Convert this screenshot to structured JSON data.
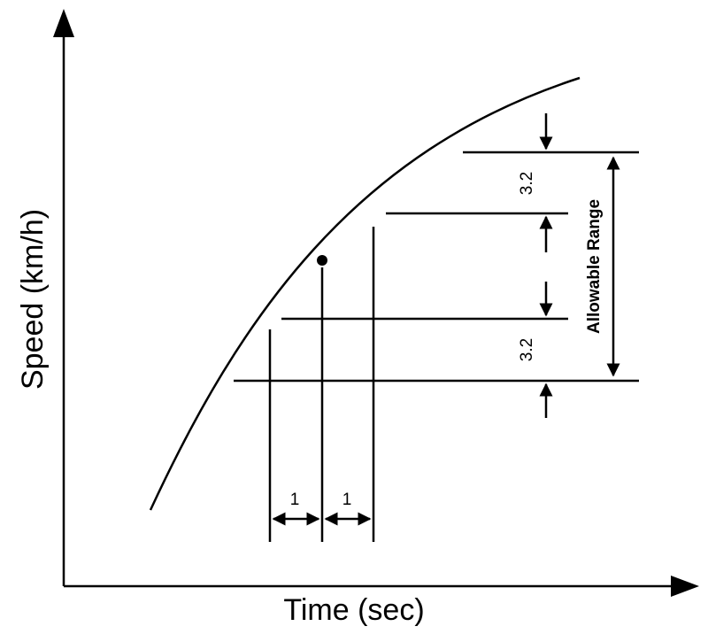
{
  "axes": {
    "x_label": "Time (sec)",
    "y_label": "Speed (km/h)"
  },
  "annotations": {
    "time_step_left": "1",
    "time_step_right": "1",
    "speed_tolerance_upper": "3.2",
    "speed_tolerance_lower": "3.2",
    "range_label": "Allowable Range"
  },
  "colors": {
    "line": "#000000",
    "background": "#ffffff"
  }
}
